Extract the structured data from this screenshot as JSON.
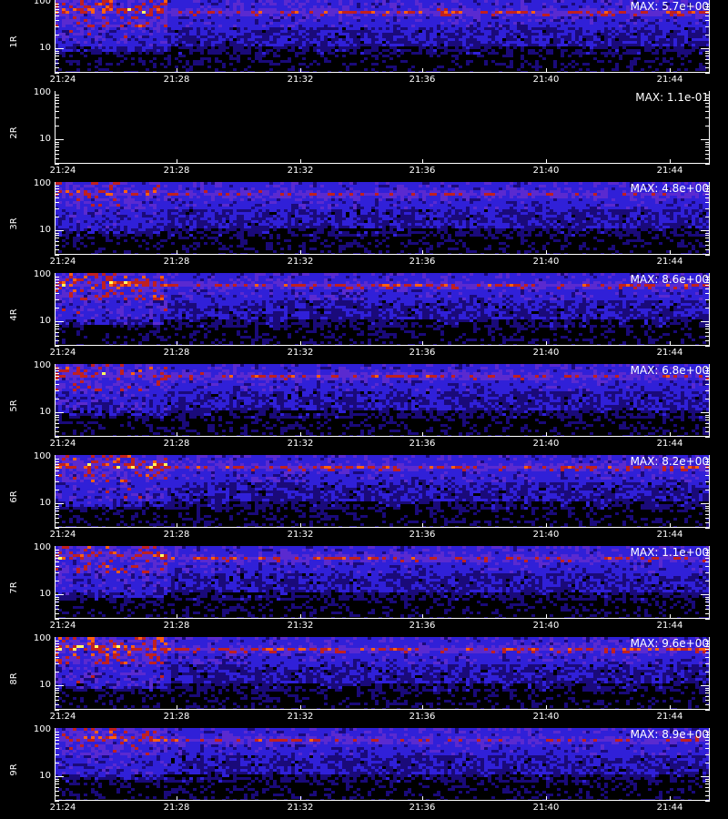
{
  "chart_data": {
    "type": "heatmap",
    "x_ticks": [
      "21:24",
      "21:28",
      "21:32",
      "21:36",
      "21:40",
      "21:44"
    ],
    "y_scale": "log",
    "y_ticks": [
      "100",
      "10"
    ],
    "ylim": [
      3,
      100
    ],
    "colormap": [
      "#000000",
      "#1a0a7a",
      "#3020d8",
      "#5a2ad0",
      "#c02020",
      "#ff6010",
      "#ffff60"
    ],
    "panels": [
      {
        "label": "1R",
        "max": "MAX: 5.7e+00",
        "intensity": 0.9,
        "active": true
      },
      {
        "label": "2R",
        "max": "MAX: 1.1e-01",
        "intensity": 0.0,
        "active": false
      },
      {
        "label": "3R",
        "max": "MAX: 4.8e+00",
        "intensity": 0.6,
        "active": true
      },
      {
        "label": "4R",
        "max": "MAX: 8.6e+00",
        "intensity": 0.95,
        "active": true
      },
      {
        "label": "5R",
        "max": "MAX: 6.8e+00",
        "intensity": 0.75,
        "active": true
      },
      {
        "label": "6R",
        "max": "MAX: 8.2e+00",
        "intensity": 0.9,
        "active": true
      },
      {
        "label": "7R",
        "max": "MAX: 1.1e+00",
        "intensity": 0.8,
        "active": true
      },
      {
        "label": "8R",
        "max": "MAX: 9.6e+00",
        "intensity": 1.0,
        "active": true
      },
      {
        "label": "9R",
        "max": "MAX: 8.9e+00",
        "intensity": 0.7,
        "active": true
      }
    ]
  }
}
